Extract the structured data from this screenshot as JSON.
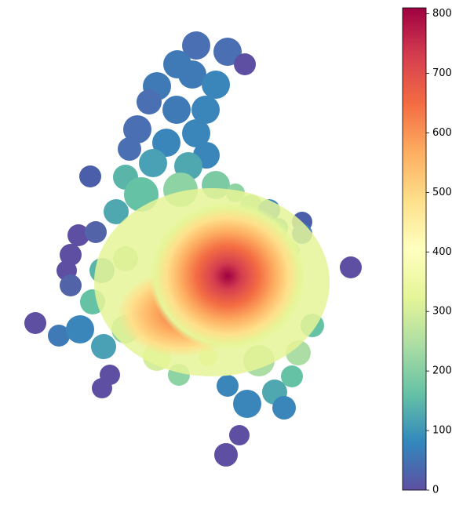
{
  "colorbar": {
    "vlim": [
      0,
      810
    ],
    "ticks": [
      0,
      100,
      200,
      300,
      400,
      500,
      600,
      700,
      800
    ],
    "colors": [
      "#5e4fa2",
      "#3288bd",
      "#66c2a5",
      "#abdda4",
      "#e6f598",
      "#ffffbf",
      "#fee08b",
      "#fdae61",
      "#f46d43",
      "#d53e4f",
      "#9e0142"
    ]
  }
}
